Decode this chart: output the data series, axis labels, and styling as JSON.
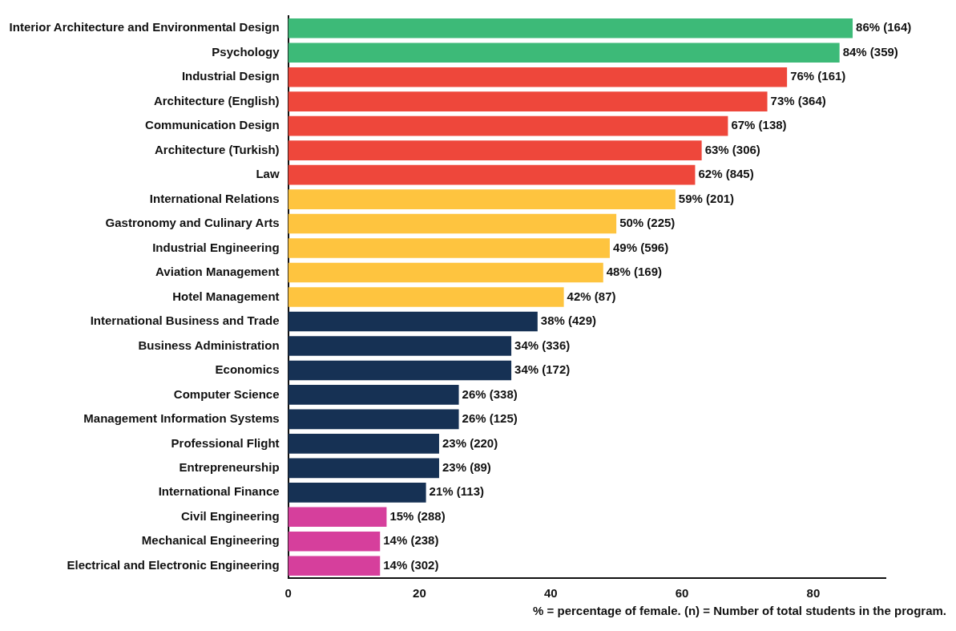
{
  "chart_data": {
    "type": "bar",
    "orientation": "horizontal",
    "categories": [
      "Interior Architecture and Environmental Design",
      "Psychology",
      "Industrial Design",
      "Architecture (English)",
      "Communication Design",
      "Architecture (Turkish)",
      "Law",
      "International Relations",
      "Gastronomy and Culinary Arts",
      "Industrial Engineering",
      "Aviation Management",
      "Hotel Management",
      "International Business and Trade",
      "Business Administration",
      "Economics",
      "Computer Science",
      "Management Information Systems",
      "Professional Flight",
      "Entrepreneurship",
      "International Finance",
      "Civil Engineering",
      "Mechanical Engineering",
      "Electrical and Electronic Engineering"
    ],
    "values": [
      86,
      84,
      76,
      73,
      67,
      63,
      62,
      59,
      50,
      49,
      48,
      42,
      38,
      34,
      34,
      26,
      26,
      23,
      23,
      21,
      15,
      14,
      14
    ],
    "value_labels": [
      "86% (164)",
      "84% (359)",
      "76% (161)",
      "73% (364)",
      "67% (138)",
      "63% (306)",
      "62% (845)",
      "59% (201)",
      "50% (225)",
      "49% (596)",
      "48% (169)",
      "42% (87)",
      "38% (429)",
      "34% (336)",
      "34% (172)",
      "26% (338)",
      "26% (125)",
      "23% (220)",
      "23% (89)",
      "21% (113)",
      "15% (288)",
      "14% (238)",
      "14% (302)"
    ],
    "colors": [
      "#3dba78",
      "#3dba78",
      "#ee473b",
      "#ee473b",
      "#ee473b",
      "#ee473b",
      "#ee473b",
      "#fec43f",
      "#fec43f",
      "#fec43f",
      "#fec43f",
      "#fec43f",
      "#163154",
      "#163154",
      "#163154",
      "#163154",
      "#163154",
      "#163154",
      "#163154",
      "#163154",
      "#d63f9c",
      "#d63f9c",
      "#d63f9c"
    ],
    "xlim": [
      0,
      91
    ],
    "xticks": [
      0,
      20,
      40,
      60,
      80
    ],
    "grid": false,
    "legend": false,
    "annotations": [
      "% = percentage of female. (n) = Number of total students in the program."
    ]
  }
}
